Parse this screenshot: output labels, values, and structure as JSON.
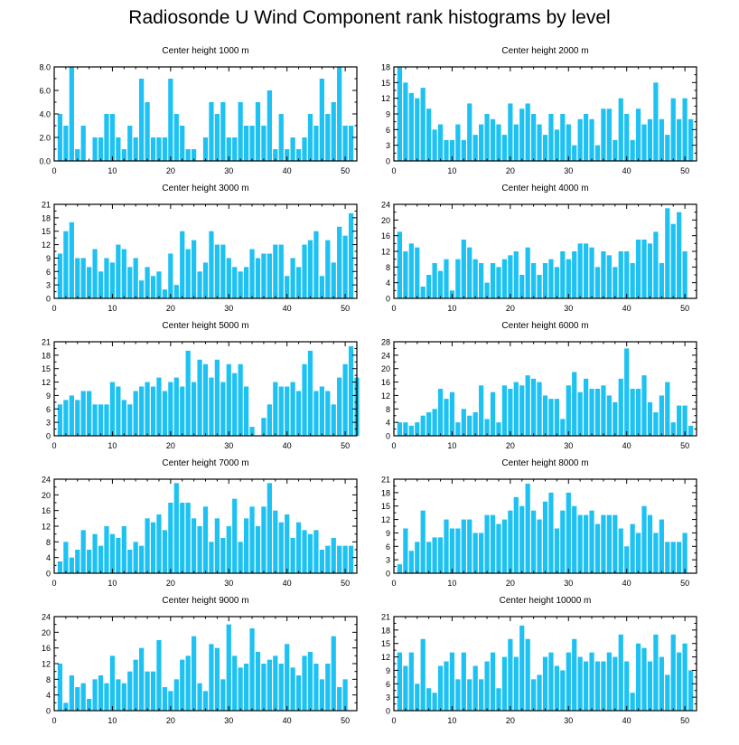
{
  "figure": {
    "title": "Radiosonde U Wind Component rank histograms by level",
    "bar_color": "#1ec2f2"
  },
  "chart_data": [
    {
      "type": "bar",
      "title": "Center height 1000 m",
      "xlim": [
        0,
        52
      ],
      "ylim": [
        0,
        8
      ],
      "yticks": [
        "0.0",
        "2.0",
        "4.0",
        "6.0",
        "8.0"
      ],
      "xticks": [
        "0",
        "10",
        "20",
        "30",
        "40",
        "50"
      ],
      "values": [
        4,
        3,
        8,
        1,
        3,
        0,
        2,
        2,
        4,
        4,
        2,
        1,
        3,
        2,
        7,
        5,
        2,
        2,
        2,
        7,
        4,
        3,
        1,
        1,
        0,
        2,
        5,
        4,
        5,
        2,
        2,
        5,
        3,
        3,
        5,
        3,
        6,
        1,
        4,
        1,
        2,
        1,
        2,
        4,
        3,
        7,
        4,
        5,
        8,
        3,
        3,
        0
      ]
    },
    {
      "type": "bar",
      "title": "Center height 2000 m",
      "xlim": [
        0,
        52
      ],
      "ylim": [
        0,
        18
      ],
      "yticks": [
        "0",
        "3",
        "6",
        "9",
        "12",
        "15",
        "18"
      ],
      "xticks": [
        "0",
        "10",
        "20",
        "30",
        "40",
        "50"
      ],
      "values": [
        18,
        15,
        13,
        12,
        14,
        10,
        6,
        7,
        4,
        4,
        7,
        4,
        11,
        5,
        7,
        9,
        8,
        7,
        5,
        11,
        7,
        10,
        11,
        9,
        7,
        5,
        9,
        6,
        9,
        7,
        3,
        8,
        9,
        8,
        3,
        10,
        10,
        4,
        12,
        9,
        4,
        10,
        7,
        8,
        15,
        8,
        5,
        12,
        8,
        12,
        8,
        0
      ]
    },
    {
      "type": "bar",
      "title": "Center height 3000 m",
      "xlim": [
        0,
        52
      ],
      "ylim": [
        0,
        21
      ],
      "yticks": [
        "0",
        "3",
        "6",
        "9",
        "12",
        "15",
        "18",
        "21"
      ],
      "xticks": [
        "0",
        "10",
        "20",
        "30",
        "40",
        "50"
      ],
      "values": [
        10,
        15,
        17,
        9,
        9,
        7,
        11,
        6,
        9,
        8,
        12,
        11,
        7,
        9,
        4,
        7,
        5,
        6,
        2,
        10,
        3,
        15,
        11,
        13,
        6,
        8,
        15,
        12,
        12,
        9,
        7,
        6,
        7,
        11,
        9,
        10,
        10,
        12,
        12,
        5,
        9,
        7,
        12,
        13,
        15,
        5,
        13,
        8,
        16,
        14,
        19,
        0
      ]
    },
    {
      "type": "bar",
      "title": "Center height 4000 m",
      "xlim": [
        0,
        52
      ],
      "ylim": [
        0,
        24
      ],
      "yticks": [
        "0",
        "4",
        "8",
        "12",
        "16",
        "20",
        "24"
      ],
      "xticks": [
        "0",
        "10",
        "20",
        "30",
        "40",
        "50"
      ],
      "values": [
        17,
        12,
        14,
        13,
        3,
        6,
        9,
        7,
        10,
        2,
        10,
        15,
        13,
        10,
        9,
        4,
        9,
        8,
        10,
        11,
        12,
        6,
        13,
        9,
        6,
        9,
        10,
        8,
        12,
        10,
        12,
        14,
        14,
        13,
        8,
        12,
        11,
        8,
        12,
        12,
        9,
        15,
        15,
        14,
        17,
        9,
        23,
        19,
        22,
        12,
        0,
        0
      ]
    },
    {
      "type": "bar",
      "title": "Center height 5000 m",
      "xlim": [
        0,
        52
      ],
      "ylim": [
        0,
        21
      ],
      "yticks": [
        "0",
        "3",
        "6",
        "9",
        "12",
        "15",
        "18",
        "21"
      ],
      "xticks": [
        "0",
        "10",
        "20",
        "30",
        "40",
        "50"
      ],
      "values": [
        7,
        8,
        9,
        8,
        10,
        10,
        7,
        7,
        7,
        12,
        11,
        8,
        7,
        10,
        11,
        12,
        11,
        13,
        10,
        12,
        13,
        11,
        19,
        12,
        17,
        16,
        13,
        17,
        12,
        16,
        14,
        16,
        11,
        2,
        0,
        4,
        7,
        12,
        11,
        11,
        12,
        10,
        16,
        19,
        10,
        11,
        10,
        7,
        13,
        16,
        20,
        13
      ]
    },
    {
      "type": "bar",
      "title": "Center height 6000 m",
      "xlim": [
        0,
        52
      ],
      "ylim": [
        0,
        28
      ],
      "yticks": [
        "0",
        "4",
        "8",
        "12",
        "16",
        "20",
        "24",
        "28"
      ],
      "xticks": [
        "0",
        "10",
        "20",
        "30",
        "40",
        "50"
      ],
      "values": [
        4,
        4,
        3,
        4,
        6,
        7,
        8,
        14,
        11,
        13,
        4,
        8,
        6,
        7,
        15,
        5,
        13,
        4,
        15,
        14,
        16,
        15,
        18,
        17,
        16,
        12,
        11,
        11,
        5,
        15,
        19,
        13,
        17,
        14,
        14,
        15,
        12,
        10,
        17,
        26,
        14,
        14,
        18,
        10,
        7,
        12,
        16,
        4,
        9,
        9,
        3,
        0
      ]
    },
    {
      "type": "bar",
      "title": "Center height 7000 m",
      "xlim": [
        0,
        52
      ],
      "ylim": [
        0,
        24
      ],
      "yticks": [
        "0",
        "4",
        "8",
        "12",
        "16",
        "20",
        "24"
      ],
      "xticks": [
        "0",
        "10",
        "20",
        "30",
        "40",
        "50"
      ],
      "values": [
        3,
        8,
        4,
        6,
        11,
        6,
        10,
        7,
        12,
        10,
        9,
        12,
        6,
        8,
        7,
        14,
        13,
        15,
        11,
        18,
        23,
        18,
        18,
        14,
        12,
        17,
        8,
        14,
        9,
        12,
        19,
        8,
        14,
        17,
        12,
        17,
        23,
        16,
        13,
        15,
        9,
        13,
        11,
        10,
        11,
        6,
        7,
        9,
        7,
        7,
        7,
        0
      ]
    },
    {
      "type": "bar",
      "title": "Center height 8000 m",
      "xlim": [
        0,
        52
      ],
      "ylim": [
        0,
        21
      ],
      "yticks": [
        "0",
        "3",
        "6",
        "9",
        "12",
        "15",
        "18",
        "21"
      ],
      "xticks": [
        "0",
        "10",
        "20",
        "30",
        "40",
        "50"
      ],
      "values": [
        2,
        10,
        5,
        7,
        14,
        7,
        8,
        8,
        12,
        10,
        10,
        12,
        12,
        9,
        9,
        13,
        13,
        11,
        12,
        14,
        17,
        15,
        20,
        14,
        12,
        16,
        18,
        10,
        14,
        18,
        15,
        13,
        13,
        14,
        11,
        13,
        13,
        13,
        10,
        6,
        11,
        9,
        15,
        13,
        9,
        12,
        7,
        7,
        7,
        9,
        0,
        0
      ]
    },
    {
      "type": "bar",
      "title": "Center height 9000 m",
      "xlim": [
        0,
        52
      ],
      "ylim": [
        0,
        24
      ],
      "yticks": [
        "0",
        "4",
        "8",
        "12",
        "16",
        "20",
        "24"
      ],
      "xticks": [
        "0",
        "10",
        "20",
        "30",
        "40",
        "50"
      ],
      "values": [
        12,
        2,
        9,
        6,
        7,
        3,
        8,
        9,
        7,
        14,
        8,
        7,
        10,
        13,
        16,
        10,
        10,
        18,
        6,
        5,
        8,
        13,
        14,
        19,
        7,
        5,
        17,
        16,
        8,
        22,
        14,
        11,
        12,
        21,
        15,
        12,
        13,
        14,
        12,
        17,
        11,
        9,
        14,
        15,
        12,
        8,
        12,
        19,
        6,
        8,
        0,
        0
      ]
    },
    {
      "type": "bar",
      "title": "Center height 10000 m",
      "xlim": [
        0,
        52
      ],
      "ylim": [
        0,
        21
      ],
      "yticks": [
        "0",
        "3",
        "6",
        "9",
        "12",
        "15",
        "18",
        "21"
      ],
      "xticks": [
        "0",
        "10",
        "20",
        "30",
        "40",
        "50"
      ],
      "values": [
        13,
        10,
        13,
        6,
        16,
        5,
        4,
        10,
        11,
        13,
        7,
        13,
        7,
        10,
        7,
        11,
        13,
        5,
        12,
        16,
        12,
        19,
        16,
        7,
        8,
        12,
        13,
        10,
        9,
        13,
        16,
        12,
        11,
        13,
        11,
        11,
        13,
        12,
        17,
        11,
        4,
        15,
        14,
        11,
        17,
        12,
        8,
        17,
        13,
        15,
        9,
        0
      ]
    }
  ]
}
